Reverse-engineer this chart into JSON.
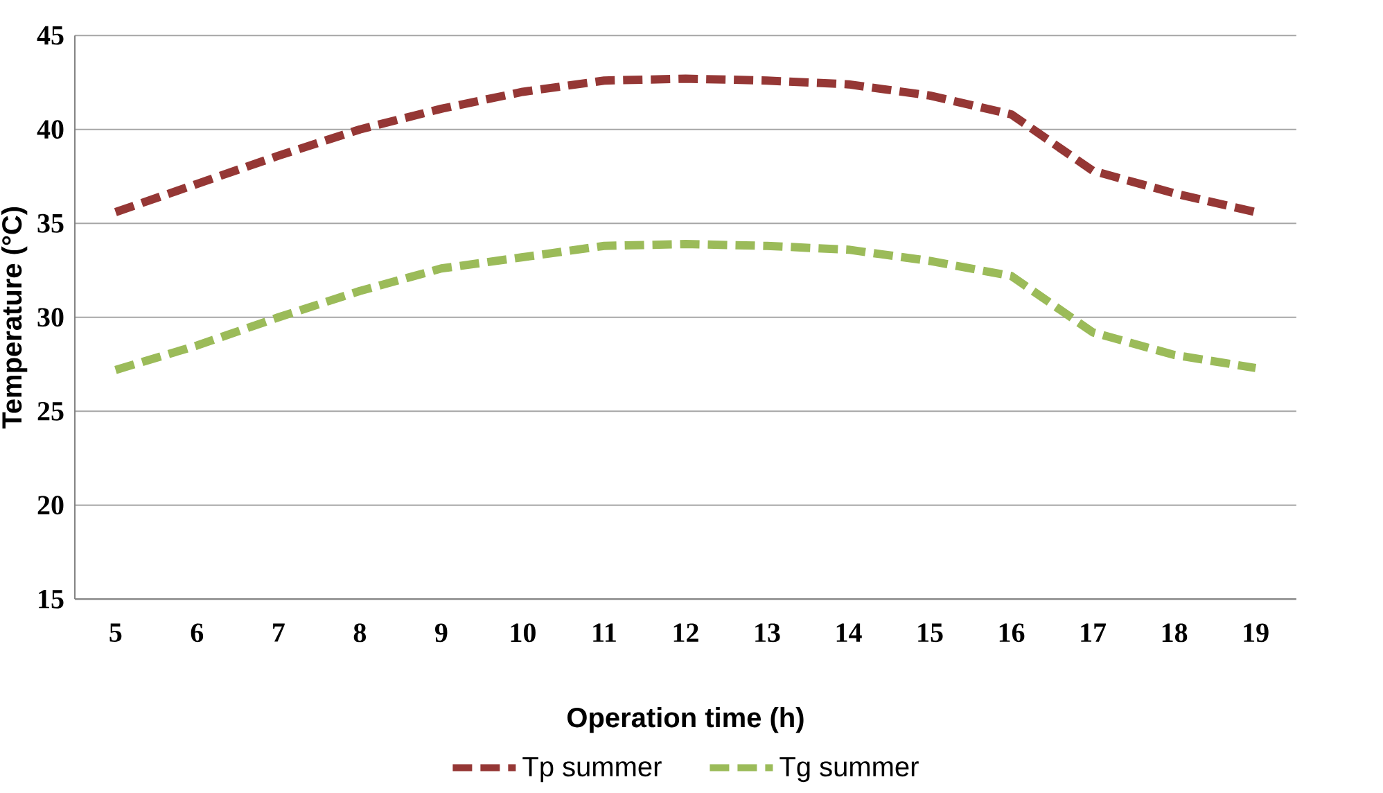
{
  "chart_data": {
    "type": "line",
    "xlabel": "Operation time (h)",
    "ylabel": "Temperature (°C)",
    "categories": [
      "5",
      "6",
      "7",
      "8",
      "9",
      "10",
      "11",
      "12",
      "13",
      "14",
      "15",
      "16",
      "17",
      "18",
      "19"
    ],
    "series": [
      {
        "name": "Tp summer",
        "color": "#953735",
        "line_style": "dashed",
        "values": [
          35.6,
          37.1,
          38.6,
          40.0,
          41.1,
          42.0,
          42.6,
          42.7,
          42.6,
          42.4,
          41.8,
          40.8,
          37.8,
          36.6,
          35.6
        ]
      },
      {
        "name": "Tg summer",
        "color": "#9bbb59",
        "line_style": "dashed",
        "values": [
          27.2,
          28.5,
          30.0,
          31.4,
          32.6,
          33.2,
          33.8,
          33.9,
          33.8,
          33.6,
          33.0,
          32.2,
          29.2,
          28.0,
          27.3
        ]
      }
    ],
    "ylim": [
      15,
      45
    ],
    "yticks": [
      15,
      20,
      25,
      30,
      35,
      40,
      45
    ],
    "grid": "y",
    "legend": "bottom",
    "marker": "none"
  }
}
